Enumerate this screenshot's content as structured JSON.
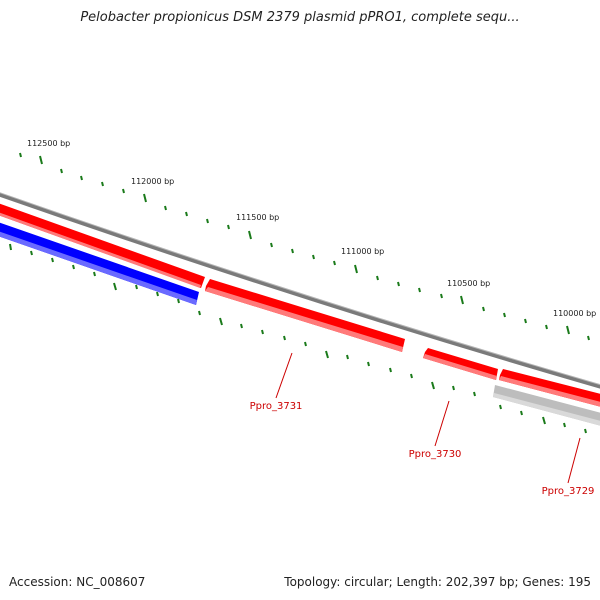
{
  "title": "Pelobacter propionicus DSM 2379 plasmid pPRO1, complete sequ...",
  "footer": {
    "accession": "Accession: NC_008607",
    "summary": "Topology: circular; Length: 202,397 bp; Genes: 195"
  },
  "colors": {
    "backbone": "#7a7a7a",
    "forward_gene": "#ff0000",
    "reverse_gene": "#0000ff",
    "other_gene": "#bdbdbd",
    "tick": "#1a7a1a",
    "gene_label": "#cc0000"
  },
  "position_labels": [
    "112500 bp",
    "112000 bp",
    "111500 bp",
    "111000 bp",
    "110500 bp",
    "110000 bp"
  ],
  "gene_labels": [
    "Ppro_3731",
    "Ppro_3730",
    "Ppro_3729"
  ]
}
